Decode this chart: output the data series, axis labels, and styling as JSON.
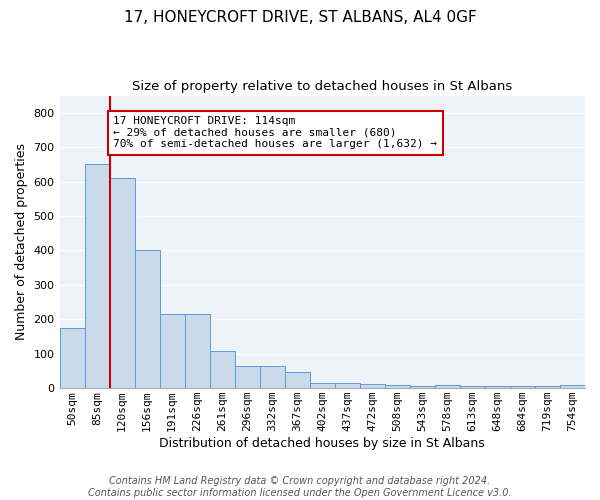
{
  "title1": "17, HONEYCROFT DRIVE, ST ALBANS, AL4 0GF",
  "title2": "Size of property relative to detached houses in St Albans",
  "xlabel": "Distribution of detached houses by size in St Albans",
  "ylabel": "Number of detached properties",
  "footer1": "Contains HM Land Registry data © Crown copyright and database right 2024.",
  "footer2": "Contains public sector information licensed under the Open Government Licence v3.0.",
  "annotation_line1": "17 HONEYCROFT DRIVE: 114sqm",
  "annotation_line2": "← 29% of detached houses are smaller (680)",
  "annotation_line3": "70% of semi-detached houses are larger (1,632) →",
  "bar_labels": [
    "50sqm",
    "85sqm",
    "120sqm",
    "156sqm",
    "191sqm",
    "226sqm",
    "261sqm",
    "296sqm",
    "332sqm",
    "367sqm",
    "402sqm",
    "437sqm",
    "472sqm",
    "508sqm",
    "543sqm",
    "578sqm",
    "613sqm",
    "648sqm",
    "684sqm",
    "719sqm",
    "754sqm"
  ],
  "bar_values": [
    175,
    650,
    610,
    400,
    215,
    215,
    108,
    65,
    65,
    48,
    15,
    15,
    12,
    8,
    5,
    8,
    5,
    5,
    5,
    5,
    8
  ],
  "bar_color": "#c9daea",
  "bar_edge_color": "#5b9bd5",
  "red_line_bar_index": 2,
  "ylim": [
    0,
    850
  ],
  "yticks": [
    0,
    100,
    200,
    300,
    400,
    500,
    600,
    700,
    800
  ],
  "background_color": "#eef3f9",
  "grid_color": "#ffffff",
  "annotation_box_facecolor": "#ffffff",
  "annotation_box_edgecolor": "#cc0000",
  "red_line_color": "#cc0000",
  "title_fontsize": 11,
  "subtitle_fontsize": 9.5,
  "axis_label_fontsize": 9,
  "tick_fontsize": 8,
  "annotation_fontsize": 8,
  "footer_fontsize": 7
}
